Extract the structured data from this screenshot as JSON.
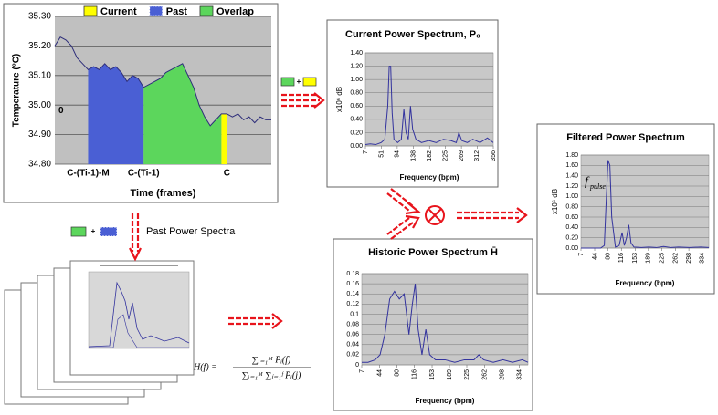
{
  "chart_data": [
    {
      "type": "line",
      "ylabel": "Temperature (°C)",
      "xlabel": "Time (frames)",
      "annotation": "0",
      "ylim": [
        34.8,
        35.3
      ],
      "yticks": [
        {
          "value": 35.3,
          "label": "35.30"
        },
        {
          "value": 35.2,
          "label": "35.20"
        },
        {
          "value": 35.1,
          "label": "35.10"
        },
        {
          "value": 35.0,
          "label": "35.00"
        },
        {
          "value": 34.9,
          "label": "34.90"
        },
        {
          "value": 34.8,
          "label": "34.80"
        }
      ],
      "categories": [
        null,
        null,
        null,
        null,
        null,
        null,
        "C-(Ti-1)-M",
        null,
        null,
        null,
        null,
        null,
        null,
        null,
        null,
        null,
        "C-(Ti-1)",
        null,
        null,
        null,
        null,
        null,
        null,
        null,
        null,
        null,
        null,
        null,
        null,
        null,
        null,
        "C",
        null,
        null,
        null,
        null,
        null,
        null,
        null,
        null
      ],
      "color": "#2e2e7a",
      "values": [
        35.2,
        35.23,
        35.22,
        35.2,
        35.16,
        35.14,
        35.12,
        35.13,
        35.12,
        35.14,
        35.12,
        35.13,
        35.11,
        35.08,
        35.1,
        35.09,
        35.06,
        35.07,
        35.08,
        35.09,
        35.11,
        35.12,
        35.13,
        35.14,
        35.1,
        35.06,
        35.0,
        34.96,
        34.93,
        34.95,
        34.97,
        34.97,
        34.96,
        34.97,
        34.95,
        34.96,
        34.94,
        34.96,
        34.95,
        34.95
      ],
      "series": [
        {
          "name": "Current",
          "color": "#ffff00",
          "values": [
            null,
            null,
            null,
            null,
            null,
            null,
            null,
            null,
            null,
            null,
            null,
            null,
            null,
            null,
            null,
            null,
            null,
            null,
            null,
            null,
            null,
            null,
            null,
            null,
            null,
            null,
            null,
            null,
            null,
            null,
            34.97,
            34.97,
            null,
            null,
            null,
            null,
            null,
            null,
            null,
            null
          ]
        },
        {
          "name": "Past",
          "color": "#4a5fd4",
          "values": [
            null,
            null,
            null,
            null,
            null,
            null,
            35.12,
            35.13,
            35.12,
            35.14,
            35.12,
            35.13,
            35.11,
            35.08,
            35.1,
            35.09,
            35.06,
            null,
            null,
            null,
            null,
            null,
            null,
            null,
            null,
            null,
            null,
            null,
            null,
            null,
            null,
            null,
            null,
            null,
            null,
            null,
            null,
            null,
            null,
            null
          ]
        },
        {
          "name": "Overlap",
          "color": "#5cd65c",
          "values": [
            null,
            null,
            null,
            null,
            null,
            null,
            null,
            null,
            null,
            null,
            null,
            null,
            null,
            null,
            null,
            null,
            35.06,
            35.07,
            35.08,
            35.09,
            35.11,
            35.12,
            35.13,
            35.14,
            35.1,
            35.06,
            35.0,
            34.96,
            34.93,
            34.95,
            34.97,
            null,
            null,
            null,
            null,
            null,
            null,
            null,
            null,
            null
          ]
        }
      ]
    },
    {
      "type": "line",
      "title": "Current Power Spectrum, P₀",
      "ylabel": "x10⁶ dB",
      "xlabel": "Frequency (bpm)",
      "color": "#33339e",
      "xlim": [
        7,
        356
      ],
      "xticks": [
        7,
        51,
        94,
        138,
        182,
        225,
        269,
        312,
        356
      ],
      "ylim": [
        0,
        1.4
      ],
      "yticks": [
        {
          "value": 0,
          "label": "0.00"
        },
        {
          "value": 0.2,
          "label": "0.20"
        },
        {
          "value": 0.4,
          "label": "0.40"
        },
        {
          "value": 0.6,
          "label": "0.60"
        },
        {
          "value": 0.8,
          "label": "0.80"
        },
        {
          "value": 1.0,
          "label": "1.00"
        },
        {
          "value": 1.2,
          "label": "1.20"
        },
        {
          "value": 1.4,
          "label": "1.40"
        }
      ],
      "x": [
        7,
        20,
        35,
        50,
        60,
        68,
        72,
        76,
        80,
        85,
        95,
        105,
        112,
        118,
        124,
        130,
        136,
        145,
        160,
        180,
        200,
        220,
        240,
        255,
        262,
        270,
        285,
        300,
        320,
        340,
        356
      ],
      "values": [
        0.02,
        0.03,
        0.02,
        0.05,
        0.1,
        0.6,
        1.2,
        1.2,
        0.5,
        0.1,
        0.05,
        0.1,
        0.55,
        0.2,
        0.1,
        0.6,
        0.25,
        0.1,
        0.05,
        0.08,
        0.05,
        0.1,
        0.08,
        0.05,
        0.2,
        0.08,
        0.05,
        0.1,
        0.05,
        0.12,
        0.05
      ]
    },
    {
      "type": "line",
      "title": "Filtered Power Spectrum",
      "ylabel": "x10⁶ dB",
      "xlabel": "Frequency (bpm)",
      "color": "#33339e",
      "annotation": {
        "main": "f",
        "sub": "pulse"
      },
      "xlim": [
        7,
        352
      ],
      "xticks": [
        7,
        44,
        80,
        116,
        153,
        189,
        225,
        262,
        298,
        334
      ],
      "ylim": [
        0,
        1.8
      ],
      "yticks": [
        {
          "value": 0,
          "label": "0.00"
        },
        {
          "value": 0.2,
          "label": "0.20"
        },
        {
          "value": 0.4,
          "label": "0.40"
        },
        {
          "value": 0.6,
          "label": "0.60"
        },
        {
          "value": 0.8,
          "label": "0.80"
        },
        {
          "value": 1.0,
          "label": "1.00"
        },
        {
          "value": 1.2,
          "label": "1.20"
        },
        {
          "value": 1.4,
          "label": "1.40"
        },
        {
          "value": 1.6,
          "label": "1.60"
        },
        {
          "value": 1.8,
          "label": "1.80"
        }
      ],
      "x": [
        7,
        40,
        60,
        70,
        75,
        80,
        85,
        90,
        100,
        110,
        118,
        124,
        130,
        136,
        142,
        150,
        170,
        190,
        210,
        230,
        250,
        270,
        300,
        330,
        352
      ],
      "values": [
        0,
        0,
        0,
        0.05,
        0.9,
        1.7,
        1.6,
        0.6,
        0.02,
        0.05,
        0.3,
        0.05,
        0.2,
        0.45,
        0.1,
        0.02,
        0.01,
        0.02,
        0.01,
        0.03,
        0.01,
        0.02,
        0.01,
        0.02,
        0.01
      ]
    },
    {
      "type": "line",
      "title": "Historic Power Spectrum H̄",
      "xlabel": "Frequency (bpm)",
      "color": "#33339e",
      "xlim": [
        7,
        352
      ],
      "xticks": [
        7,
        44,
        80,
        116,
        153,
        189,
        225,
        262,
        298,
        334
      ],
      "ylim": [
        0,
        0.18
      ],
      "yticks": [
        0,
        0.02,
        0.04,
        0.06,
        0.08,
        0.1,
        0.12,
        0.14,
        0.16,
        0.18
      ],
      "x": [
        7,
        20,
        35,
        45,
        55,
        65,
        75,
        85,
        95,
        105,
        112,
        118,
        124,
        132,
        140,
        148,
        160,
        180,
        200,
        220,
        240,
        250,
        260,
        280,
        300,
        320,
        340,
        352
      ],
      "values": [
        0.005,
        0.005,
        0.01,
        0.02,
        0.06,
        0.13,
        0.145,
        0.13,
        0.14,
        0.06,
        0.12,
        0.16,
        0.07,
        0.02,
        0.07,
        0.02,
        0.01,
        0.01,
        0.005,
        0.01,
        0.01,
        0.02,
        0.01,
        0.005,
        0.01,
        0.005,
        0.01,
        0.005
      ]
    }
  ],
  "plus": "+",
  "past_label": "Past Power Spectra",
  "formula": {
    "lhs": "H(f) =",
    "numerator": "∑ᵢ₌₁ᴹ Pᵢ(f)",
    "denominator": "∑ᵢ₌₁ᴹ ∑ⱼ₌₁ᶠ Pᵢ(j)"
  }
}
